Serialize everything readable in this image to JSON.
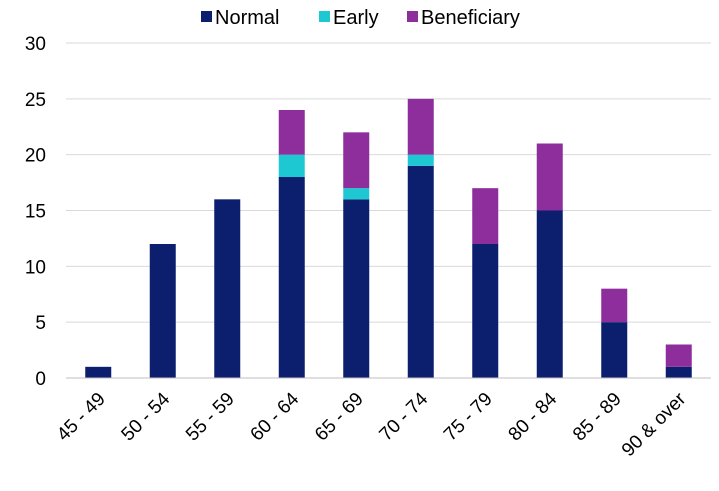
{
  "chart_data": {
    "type": "bar",
    "stacked": true,
    "categories": [
      "45 - 49",
      "50 - 54",
      "55 - 59",
      "60 - 64",
      "65 - 69",
      "70 - 74",
      "75 - 79",
      "80 - 84",
      "85 - 89",
      "90 & over"
    ],
    "series": [
      {
        "name": "Normal",
        "color": "#0b1f6e",
        "values": [
          1,
          12,
          16,
          18,
          16,
          19,
          12,
          15,
          5,
          1
        ]
      },
      {
        "name": "Early",
        "color": "#1ec8d2",
        "values": [
          0,
          0,
          0,
          2,
          1,
          1,
          0,
          0,
          0,
          0
        ]
      },
      {
        "name": "Beneficiary",
        "color": "#8e2d9c",
        "values": [
          0,
          0,
          0,
          4,
          5,
          5,
          5,
          6,
          3,
          2
        ]
      }
    ],
    "ylim": [
      0,
      30
    ],
    "yticks": [
      0,
      5,
      10,
      15,
      20,
      25,
      30
    ],
    "ytick_labels": [
      "0",
      "5",
      "10",
      "15",
      "20",
      "25",
      "30"
    ],
    "grid": true,
    "legend_position": "top"
  }
}
